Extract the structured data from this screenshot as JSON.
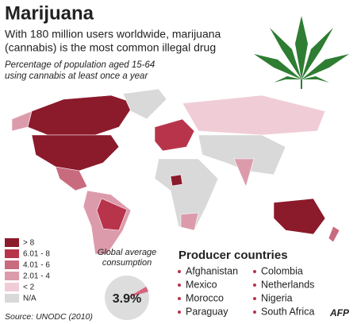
{
  "header": {
    "title": "Marijuana",
    "subtitle": [
      "With 180 million users worldwide, marijuana",
      "(cannabis) is the most common illegal drug"
    ],
    "description": [
      "Percentage of population aged 15-64",
      "using cannabis at least once a year"
    ]
  },
  "legend": [
    {
      "label": "> 8",
      "color": "#8b1a2b"
    },
    {
      "label": "6.01 - 8",
      "color": "#b8344a"
    },
    {
      "label": "4.01 - 6",
      "color": "#c96b7f"
    },
    {
      "label": "2.01 - 4",
      "color": "#dc9bab"
    },
    {
      "label": "< 2",
      "color": "#f0cdd6"
    },
    {
      "label": "N/A",
      "color": "#d9d9d9"
    }
  ],
  "global_average": {
    "label": [
      "Global average",
      "consumption"
    ],
    "value": 3.9,
    "value_label": "3.9%"
  },
  "producers": {
    "title": "Producer countries",
    "countries": [
      "Afghanistan",
      "Mexico",
      "Morocco",
      "Paraguay",
      "Colombia",
      "Netherlands",
      "Nigeria",
      "South Africa"
    ]
  },
  "source": "Source: UNODC (2010)",
  "credit": "AFP"
}
